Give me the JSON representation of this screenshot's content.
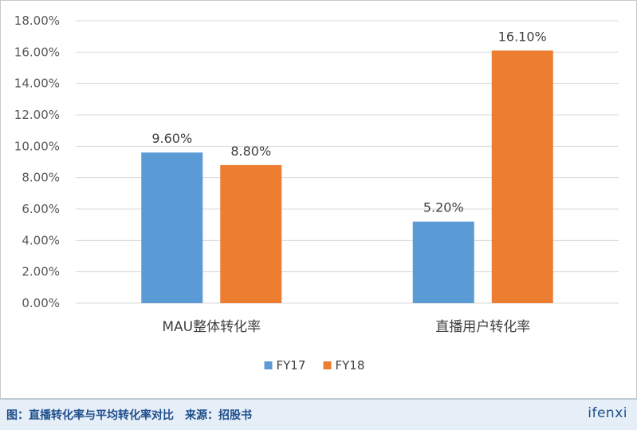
{
  "chart_data": {
    "type": "bar",
    "categories": [
      "MAU整体转化率",
      "直播用户转化率"
    ],
    "series": [
      {
        "name": "FY17",
        "values": [
          9.6,
          5.2
        ],
        "labels": [
          "9.60%",
          "5.20%"
        ],
        "color": "#5b9bd5"
      },
      {
        "name": "FY18",
        "values": [
          8.8,
          16.1
        ],
        "labels": [
          "8.80%",
          "16.10%"
        ],
        "color": "#ed7d31"
      }
    ],
    "ylim": [
      0,
      18
    ],
    "yticks": [
      0,
      2,
      4,
      6,
      8,
      10,
      12,
      14,
      16,
      18
    ],
    "ytick_labels": [
      "0.00%",
      "2.00%",
      "4.00%",
      "6.00%",
      "8.00%",
      "10.00%",
      "12.00%",
      "14.00%",
      "16.00%",
      "18.00%"
    ],
    "grid": true,
    "legend": "bottom-center",
    "gridline_color": "#d9d9d9"
  },
  "footer": {
    "caption": "图：直播转化率与平均转化率对比　来源：招股书",
    "brand": "ifenxi"
  }
}
